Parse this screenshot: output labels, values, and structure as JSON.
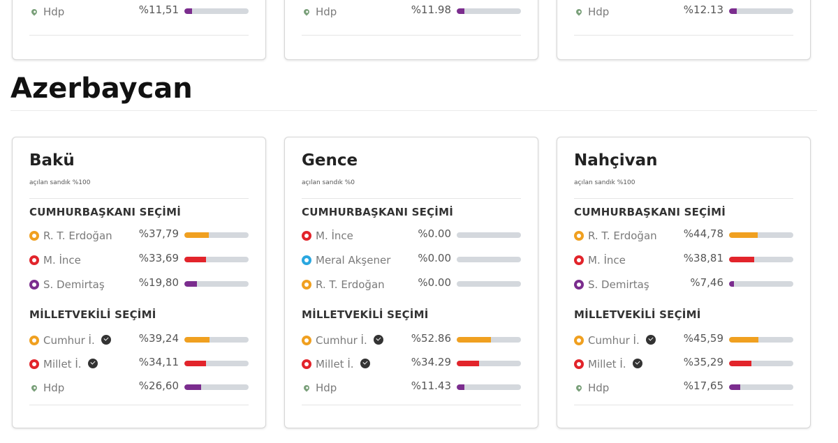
{
  "colors": {
    "erdogan": "#f0a020",
    "ince": "#e2242b",
    "demirtas": "#7b2d8e",
    "aksener": "#2aa7e0",
    "hdp": "#7b2d8e",
    "cumhur": "#f0a020",
    "millet": "#e2242b",
    "hdp_pin": "#7aa07a",
    "bar_track": "#d4d8dd"
  },
  "top_cards": [
    {
      "name": "Hdp",
      "pct": "%11,51",
      "value": 11.51
    },
    {
      "name": "Hdp",
      "pct": "%11.98",
      "value": 11.98
    },
    {
      "name": "Hdp",
      "pct": "%12.13",
      "value": 12.13
    }
  ],
  "section_title": "Azerbaycan",
  "cards": [
    {
      "city": "Bakü",
      "opened": "açılan sandık %100",
      "pres_title": "CUMHURBAŞKANI SEÇİMİ",
      "pres": [
        {
          "name": "R. T. Erdoğan",
          "pct": "%37,79",
          "value": 37.79,
          "icon": "erdogan-icon",
          "color": "#f0a020"
        },
        {
          "name": "M. İnce",
          "pct": "%33,69",
          "value": 33.69,
          "icon": "ince-icon",
          "color": "#e2242b"
        },
        {
          "name": "S. Demirtaş",
          "pct": "%19,80",
          "value": 19.8,
          "icon": "demirtas-icon",
          "color": "#7b2d8e"
        }
      ],
      "mv_title": "MİLLETVEKİLİ SEÇİMİ",
      "mv": [
        {
          "name": "Cumhur İ.",
          "pct": "%39,24",
          "value": 39.24,
          "icon": "cumhur-icon",
          "color": "#f0a020",
          "check": true
        },
        {
          "name": "Millet İ.",
          "pct": "%34,11",
          "value": 34.11,
          "icon": "millet-icon",
          "color": "#e2242b",
          "check": true
        },
        {
          "name": "Hdp",
          "pct": "%26,60",
          "value": 26.6,
          "icon": "hdp-pin-icon",
          "color": "#7b2d8e",
          "check": false
        }
      ]
    },
    {
      "city": "Gence",
      "opened": "açılan sandık %0",
      "pres_title": "CUMHURBAŞKANI SEÇİMİ",
      "pres": [
        {
          "name": "M. İnce",
          "pct": "%0.00",
          "value": 0,
          "icon": "ince-icon",
          "color": "#e2242b"
        },
        {
          "name": "Meral Akşener",
          "pct": "%0.00",
          "value": 0,
          "icon": "aksener-icon",
          "color": "#2aa7e0"
        },
        {
          "name": "R. T. Erdoğan",
          "pct": "%0.00",
          "value": 0,
          "icon": "erdogan-icon",
          "color": "#f0a020"
        }
      ],
      "mv_title": "MİLLETVEKİLİ SEÇİMİ",
      "mv": [
        {
          "name": "Cumhur İ.",
          "pct": "%52.86",
          "value": 52.86,
          "icon": "cumhur-icon",
          "color": "#f0a020",
          "check": true
        },
        {
          "name": "Millet İ.",
          "pct": "%34.29",
          "value": 34.29,
          "icon": "millet-icon",
          "color": "#e2242b",
          "check": true
        },
        {
          "name": "Hdp",
          "pct": "%11.43",
          "value": 11.43,
          "icon": "hdp-pin-icon",
          "color": "#7b2d8e",
          "check": false
        }
      ]
    },
    {
      "city": "Nahçivan",
      "opened": "açılan sandık %100",
      "pres_title": "CUMHURBAŞKANI SEÇİMİ",
      "pres": [
        {
          "name": "R. T. Erdoğan",
          "pct": "%44,78",
          "value": 44.78,
          "icon": "erdogan-icon",
          "color": "#f0a020"
        },
        {
          "name": "M. İnce",
          "pct": "%38,81",
          "value": 38.81,
          "icon": "ince-icon",
          "color": "#e2242b"
        },
        {
          "name": "S. Demirtaş",
          "pct": "%7,46",
          "value": 7.46,
          "icon": "demirtas-icon",
          "color": "#7b2d8e"
        }
      ],
      "mv_title": "MİLLETVEKİLİ SEÇİMİ",
      "mv": [
        {
          "name": "Cumhur İ.",
          "pct": "%45,59",
          "value": 45.59,
          "icon": "cumhur-icon",
          "color": "#f0a020",
          "check": true
        },
        {
          "name": "Millet İ.",
          "pct": "%35,29",
          "value": 35.29,
          "icon": "millet-icon",
          "color": "#e2242b",
          "check": true
        },
        {
          "name": "Hdp",
          "pct": "%17,65",
          "value": 17.65,
          "icon": "hdp-pin-icon",
          "color": "#7b2d8e",
          "check": false
        }
      ]
    }
  ]
}
